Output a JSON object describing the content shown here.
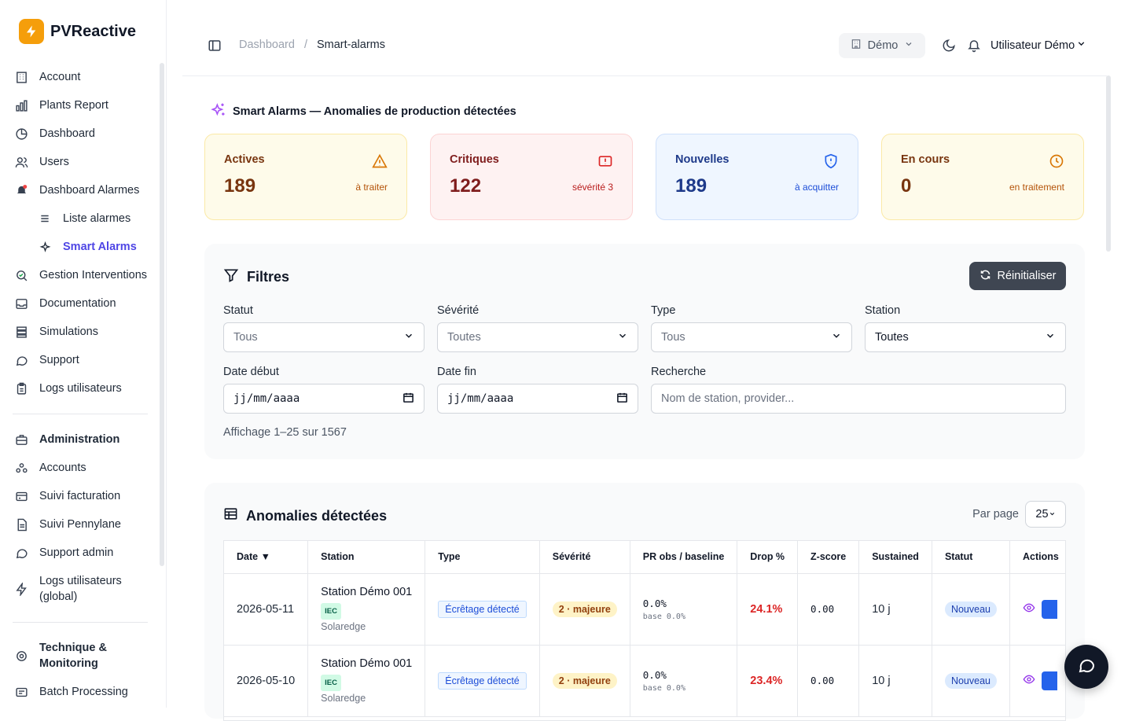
{
  "brand": {
    "name": "PVReactive",
    "accent": "#f59e0b"
  },
  "sidebar": {
    "items": [
      {
        "label": "Account",
        "icon": "building-icon"
      },
      {
        "label": "Plants Report",
        "icon": "bar-chart-icon"
      },
      {
        "label": "Dashboard",
        "icon": "pie-chart-icon"
      },
      {
        "label": "Users",
        "icon": "users-icon"
      },
      {
        "label": "Dashboard Alarmes",
        "icon": "bell-alert-icon"
      },
      {
        "label": "Liste alarmes",
        "icon": "list-icon"
      },
      {
        "label": "Smart Alarms",
        "icon": "sparkle-icon"
      },
      {
        "label": "Gestion Interventions",
        "icon": "search-check-icon"
      },
      {
        "label": "Documentation",
        "icon": "inbox-icon"
      },
      {
        "label": "Simulations",
        "icon": "database-icon"
      },
      {
        "label": "Support",
        "icon": "chat-icon"
      },
      {
        "label": "Logs utilisateurs",
        "icon": "clipboard-icon"
      }
    ],
    "admin_items": [
      {
        "label": "Administration",
        "icon": "briefcase-icon"
      },
      {
        "label": "Accounts",
        "icon": "accounts-icon"
      },
      {
        "label": "Suivi facturation",
        "icon": "billing-icon"
      },
      {
        "label": "Suivi Pennylane",
        "icon": "document-icon"
      },
      {
        "label": "Support admin",
        "icon": "chat-icon"
      },
      {
        "label": "Logs utilisateurs (global)",
        "icon": "activity-icon"
      }
    ],
    "tech_items": [
      {
        "label": "Technique & Monitoring",
        "icon": "gear-icon"
      },
      {
        "label": "Batch Processing",
        "icon": "batch-icon"
      }
    ]
  },
  "header": {
    "breadcrumb_root": "Dashboard",
    "breadcrumb_sep": "/",
    "breadcrumb_current": "Smart-alarms",
    "account_select": "Démo",
    "user_name": "Utilisateur Démo"
  },
  "section_title": "Smart Alarms — Anomalies de production détectées",
  "stats": [
    {
      "label": "Actives",
      "value": "189",
      "sub": "à traiter",
      "icon": "warning-icon"
    },
    {
      "label": "Critiques",
      "value": "122",
      "sub": "sévérité 3",
      "icon": "alert-square-icon"
    },
    {
      "label": "Nouvelles",
      "value": "189",
      "sub": "à acquitter",
      "icon": "shield-icon"
    },
    {
      "label": "En cours",
      "value": "0",
      "sub": "en traitement",
      "icon": "clock-icon"
    }
  ],
  "filters": {
    "title": "Filtres",
    "reset_label": "Réinitialiser",
    "statut": {
      "label": "Statut",
      "value": "Tous"
    },
    "severite": {
      "label": "Sévérité",
      "value": "Toutes"
    },
    "type": {
      "label": "Type",
      "value": "Tous"
    },
    "station": {
      "label": "Station",
      "value": "Toutes"
    },
    "date_debut": {
      "label": "Date début",
      "value": "jj/mm/aaaa"
    },
    "date_fin": {
      "label": "Date fin",
      "value": "jj/mm/aaaa"
    },
    "recherche": {
      "label": "Recherche",
      "placeholder": "Nom de station, provider..."
    },
    "count_text": "Affichage 1–25 sur 1567"
  },
  "table": {
    "title": "Anomalies détectées",
    "per_page_label": "Par page",
    "per_page_value": "25",
    "columns": [
      "Date ▼",
      "Station",
      "Type",
      "Sévérité",
      "PR obs / baseline",
      "Drop %",
      "Z-score",
      "Sustained",
      "Statut",
      "Actions"
    ],
    "rows": [
      {
        "date": "2026-05-11",
        "station": "Station Démo 001",
        "tag": "IEC",
        "provider": "Solaredge",
        "type": "Écrêtage détecté",
        "severity": "2 · majeure",
        "pr_obs": "0.0%",
        "pr_base": "base 0.0%",
        "drop": "24.1%",
        "zscore": "0.00",
        "sustained": "10 j",
        "status": "Nouveau"
      },
      {
        "date": "2026-05-10",
        "station": "Station Démo 001",
        "tag": "IEC",
        "provider": "Solaredge",
        "type": "Écrêtage détecté",
        "severity": "2 · majeure",
        "pr_obs": "0.0%",
        "pr_base": "base 0.0%",
        "drop": "23.4%",
        "zscore": "0.00",
        "sustained": "10 j",
        "status": "Nouveau"
      }
    ]
  }
}
